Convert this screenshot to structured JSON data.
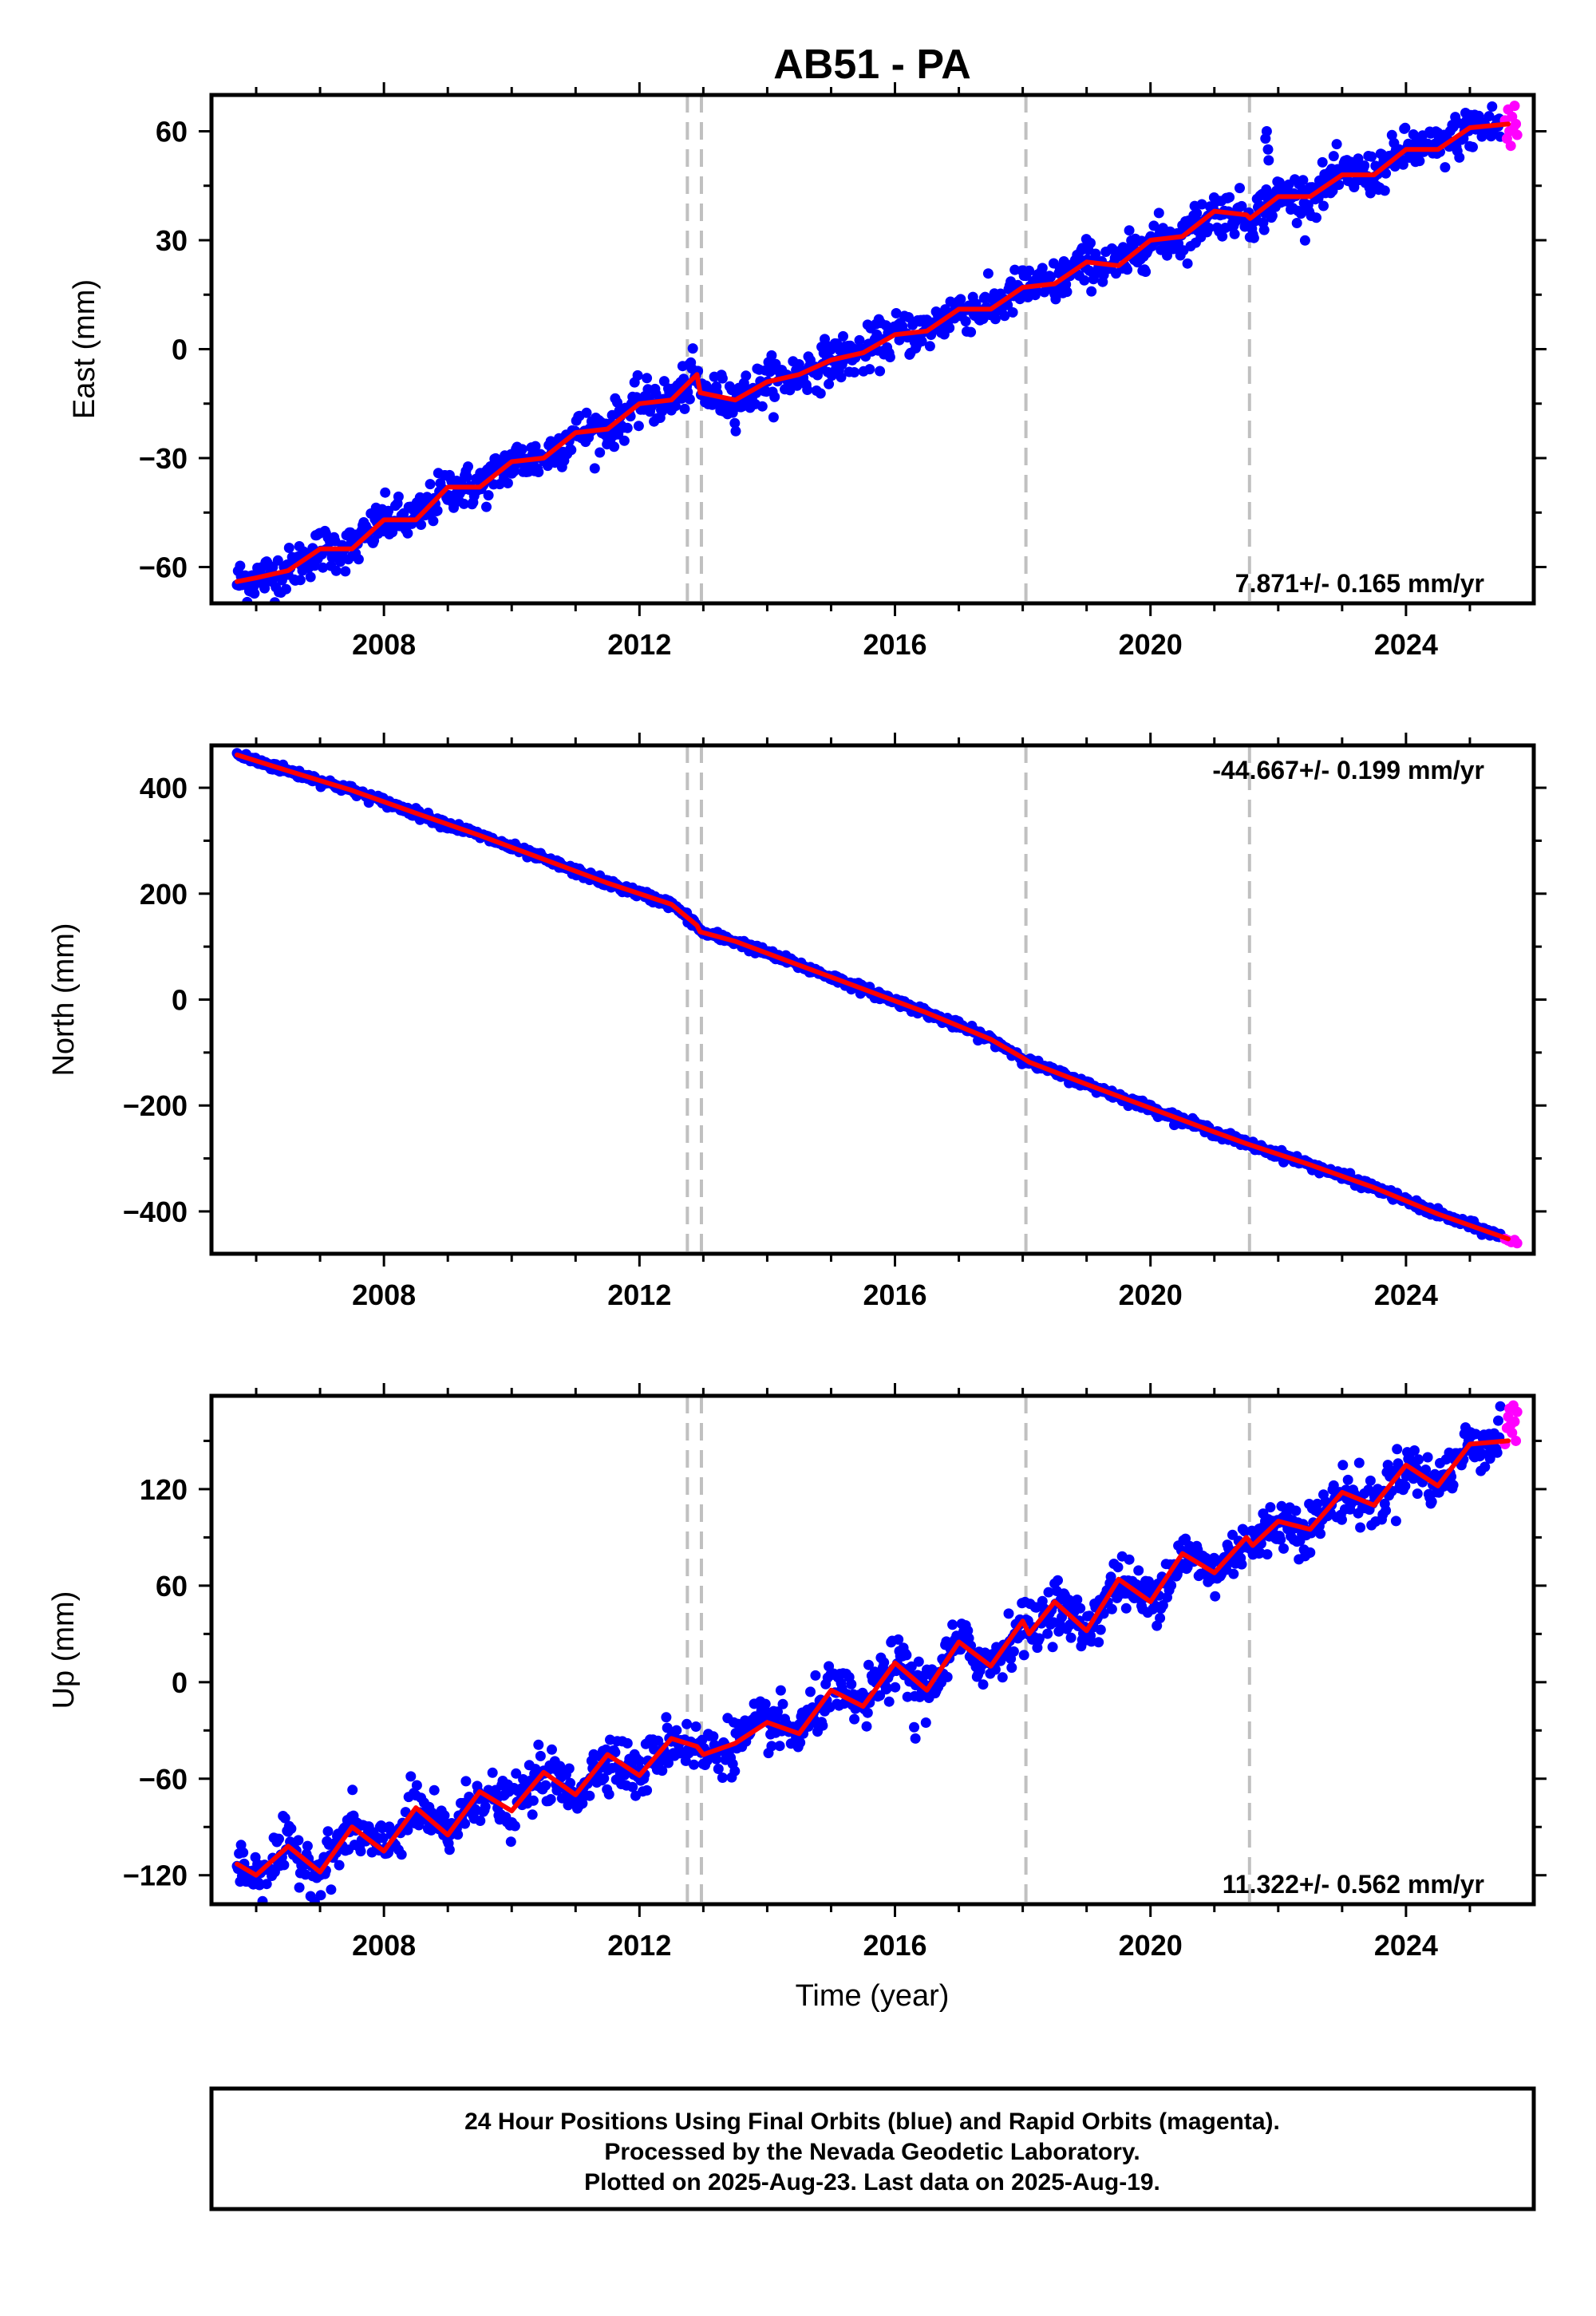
{
  "chart_data": {
    "title": "AB51 - PA",
    "xlabel": "Time (year)",
    "xlim": [
      2005.3,
      2026.0
    ],
    "x_ticks": [
      2008,
      2012,
      2016,
      2020,
      2024
    ],
    "x_tick_labels": [
      "2008",
      "2012",
      "2016",
      "2020",
      "2024"
    ],
    "vertical_lines": [
      2012.75,
      2012.97,
      2018.05,
      2021.55
    ],
    "colors": {
      "final": "#0000ff",
      "rapid": "#ff00ff",
      "model": "#ff0000",
      "vline": "#c0c0c0"
    },
    "panels": [
      {
        "type": "scatter",
        "ylabel": "East (mm)",
        "ylim": [
          -70,
          70
        ],
        "y_ticks": [
          -60,
          -30,
          0,
          30,
          60
        ],
        "y_tick_labels": [
          "−60",
          "−30",
          "0",
          "30",
          "60"
        ],
        "rate_text": "7.871+/- 0.165 mm/yr",
        "rate_position": "bottom-right",
        "model_knots": {
          "x": [
            2005.7,
            2006.0,
            2006.5,
            2007.0,
            2007.5,
            2008.0,
            2008.5,
            2009.0,
            2009.5,
            2010.0,
            2010.5,
            2011.0,
            2011.5,
            2012.0,
            2012.5,
            2012.9,
            2012.95,
            2013.5,
            2014.0,
            2014.5,
            2015.0,
            2015.5,
            2016.0,
            2016.5,
            2017.0,
            2017.5,
            2018.0,
            2018.5,
            2019.0,
            2019.5,
            2020.0,
            2020.5,
            2021.0,
            2021.5,
            2021.56,
            2022.0,
            2022.5,
            2023.0,
            2023.5,
            2024.0,
            2024.5,
            2025.0,
            2025.6
          ],
          "y": [
            -64,
            -63,
            -61,
            -55,
            -55,
            -47,
            -47,
            -38,
            -38,
            -31,
            -30,
            -23,
            -22,
            -15,
            -14,
            -7,
            -12,
            -14,
            -9,
            -7,
            -3,
            -1,
            4,
            5,
            11,
            11,
            17,
            18,
            24,
            23,
            30,
            31,
            38,
            37,
            36,
            42,
            42,
            48,
            48,
            55,
            55,
            61,
            62
          ]
        },
        "noise": 3.0,
        "rapid_points": [
          [
            2025.55,
            63
          ],
          [
            2025.58,
            58
          ],
          [
            2025.6,
            66
          ],
          [
            2025.62,
            60
          ],
          [
            2025.64,
            56
          ],
          [
            2025.66,
            64
          ],
          [
            2025.68,
            61
          ],
          [
            2025.7,
            67
          ],
          [
            2025.72,
            62
          ],
          [
            2025.74,
            59
          ]
        ],
        "outliers": [
          [
            2021.8,
            58
          ],
          [
            2021.82,
            60
          ],
          [
            2021.85,
            52
          ],
          [
            2021.84,
            55
          ]
        ]
      },
      {
        "type": "scatter",
        "ylabel": "North (mm)",
        "ylim": [
          -480,
          480
        ],
        "y_ticks": [
          -400,
          -200,
          0,
          200,
          400
        ],
        "y_tick_labels": [
          "−400",
          "−200",
          "0",
          "200",
          "400"
        ],
        "rate_text": "-44.667+/- 0.199 mm/yr",
        "rate_position": "top-right",
        "model_knots": {
          "x": [
            2005.7,
            2006.5,
            2007.5,
            2008.5,
            2009.5,
            2010.5,
            2011.5,
            2012.5,
            2012.9,
            2012.95,
            2013.5,
            2014.5,
            2015.5,
            2016.5,
            2017.5,
            2018.0,
            2018.1,
            2019.0,
            2020.0,
            2021.0,
            2021.5,
            2021.6,
            2022.5,
            2023.5,
            2024.5,
            2025.6
          ],
          "y": [
            462,
            432,
            395,
            352,
            310,
            265,
            220,
            180,
            140,
            128,
            110,
            65,
            20,
            -25,
            -75,
            -110,
            -118,
            -160,
            -205,
            -250,
            -272,
            -276,
            -312,
            -355,
            -405,
            -452
          ]
        },
        "noise": 4.0,
        "rapid_points": [
          [
            2025.55,
            -452
          ],
          [
            2025.6,
            -455
          ],
          [
            2025.65,
            -458
          ],
          [
            2025.7,
            -454
          ],
          [
            2025.74,
            -460
          ]
        ],
        "outliers": []
      },
      {
        "type": "scatter",
        "ylabel": "Up (mm)",
        "ylim": [
          -138,
          178
        ],
        "y_ticks": [
          -120,
          -60,
          0,
          60,
          120
        ],
        "y_tick_labels": [
          "−120",
          "−60",
          "0",
          "60",
          "120"
        ],
        "rate_text": "11.322+/- 0.562 mm/yr",
        "rate_position": "bottom-right",
        "model_knots": {
          "x": [
            2005.7,
            2006.0,
            2006.5,
            2007.0,
            2007.5,
            2008.0,
            2008.5,
            2009.0,
            2009.5,
            2010.0,
            2010.5,
            2011.0,
            2011.5,
            2012.0,
            2012.5,
            2012.9,
            2013.0,
            2013.5,
            2014.0,
            2014.5,
            2015.0,
            2015.5,
            2016.0,
            2016.5,
            2017.0,
            2017.5,
            2018.0,
            2018.1,
            2018.5,
            2019.0,
            2019.5,
            2020.0,
            2020.5,
            2021.0,
            2021.5,
            2021.6,
            2022.0,
            2022.5,
            2023.0,
            2023.5,
            2024.0,
            2024.5,
            2025.0,
            2025.6
          ],
          "y": [
            -113,
            -120,
            -102,
            -118,
            -90,
            -105,
            -78,
            -95,
            -68,
            -80,
            -56,
            -70,
            -45,
            -58,
            -35,
            -40,
            -45,
            -38,
            -25,
            -32,
            -5,
            -15,
            12,
            -5,
            25,
            10,
            38,
            30,
            50,
            32,
            64,
            50,
            80,
            68,
            90,
            85,
            100,
            95,
            118,
            110,
            135,
            122,
            148,
            150
          ]
        },
        "noise": 8.0,
        "rapid_points": [
          [
            2025.55,
            148
          ],
          [
            2025.58,
            158
          ],
          [
            2025.6,
            165
          ],
          [
            2025.62,
            170
          ],
          [
            2025.64,
            160
          ],
          [
            2025.66,
            155
          ],
          [
            2025.68,
            172
          ],
          [
            2025.7,
            162
          ],
          [
            2025.72,
            150
          ],
          [
            2025.74,
            168
          ]
        ],
        "outliers": [
          [
            2016.3,
            -28
          ],
          [
            2016.32,
            -35
          ],
          [
            2014.1,
            -18
          ],
          [
            2021.7,
            80
          ]
        ]
      }
    ]
  },
  "footer": {
    "line1": "24 Hour Positions Using Final Orbits (blue) and Rapid Orbits (magenta).",
    "line2": "Processed by the Nevada Geodetic Laboratory.",
    "line3": "Plotted on 2025-Aug-23. Last data on 2025-Aug-19."
  }
}
